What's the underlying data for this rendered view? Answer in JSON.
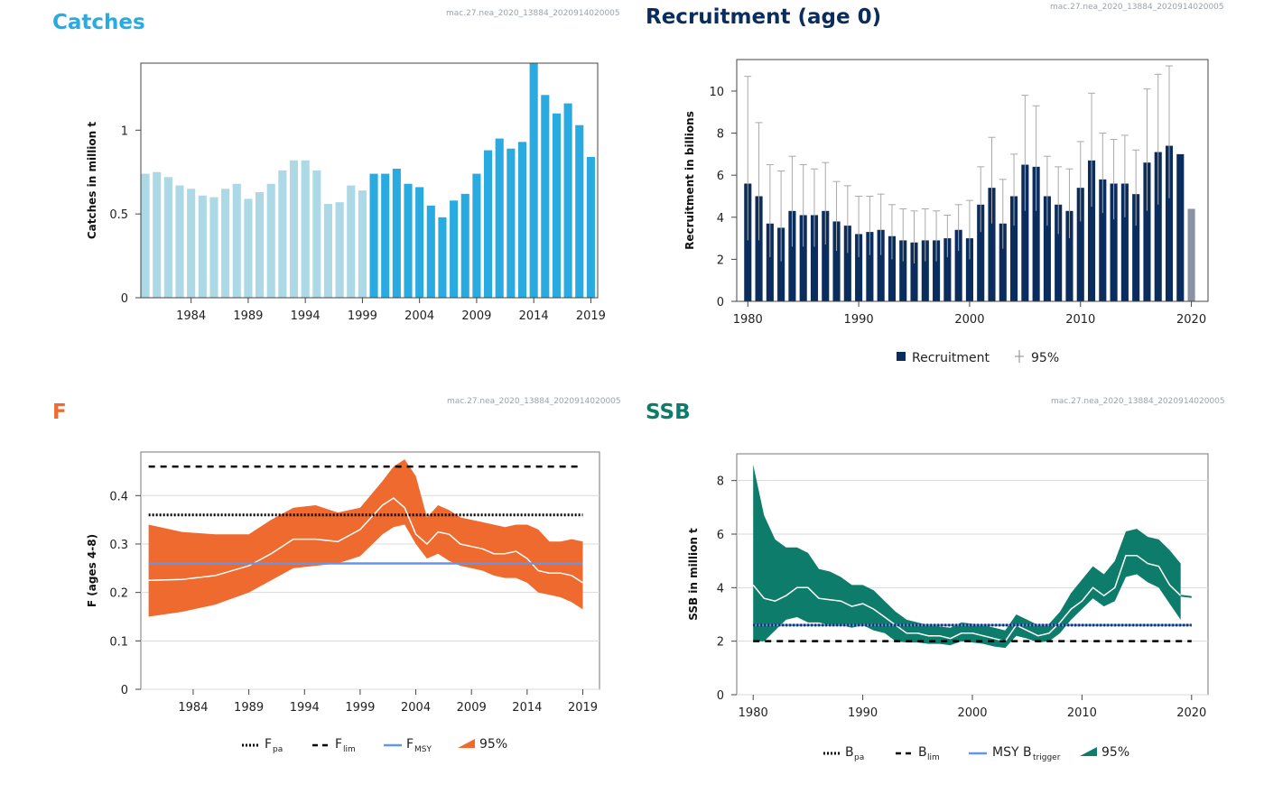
{
  "panels": {
    "catches": {
      "title": "Catches",
      "stamp": "mac.27.nea_2020_13884_2020914020005",
      "color": "#29abe2"
    },
    "recruitment": {
      "title": "Recruitment (age 0)",
      "stamp": "mac.27.nea_2020_13884_2020914020005",
      "color": "#0b2d5e"
    },
    "f": {
      "title": "F",
      "stamp": "mac.27.nea_2020_13884_2020914020005",
      "color": "#ee6a2e"
    },
    "ssb": {
      "title": "SSB",
      "stamp": "mac.27.nea_2020_13884_2020914020005",
      "color": "#0e7c6b"
    }
  },
  "chart_data": [
    {
      "id": "catches",
      "type": "bar",
      "title": "Catches",
      "ylabel": "Catches in million t",
      "xlabel": "",
      "ylim": [
        0,
        1.4
      ],
      "xlim": [
        1979.6,
        2019.6
      ],
      "xticks": [
        "1984",
        "1989",
        "1994",
        "1999",
        "2004",
        "2009",
        "2014",
        "2019"
      ],
      "yticks": [
        "0",
        "0.5",
        "1"
      ],
      "colors": {
        "historic": "#add8e6",
        "recent": "#29abe2"
      },
      "x": [
        1980,
        1981,
        1982,
        1983,
        1984,
        1985,
        1986,
        1987,
        1988,
        1989,
        1990,
        1991,
        1992,
        1993,
        1994,
        1995,
        1996,
        1997,
        1998,
        1999,
        2000,
        2001,
        2002,
        2003,
        2004,
        2005,
        2006,
        2007,
        2008,
        2009,
        2010,
        2011,
        2012,
        2013,
        2014,
        2015,
        2016,
        2017,
        2018,
        2019
      ],
      "values": [
        0.74,
        0.75,
        0.72,
        0.67,
        0.65,
        0.61,
        0.6,
        0.65,
        0.68,
        0.59,
        0.63,
        0.68,
        0.76,
        0.82,
        0.82,
        0.76,
        0.56,
        0.57,
        0.67,
        0.64,
        0.74,
        0.74,
        0.77,
        0.68,
        0.66,
        0.55,
        0.48,
        0.58,
        0.62,
        0.74,
        0.88,
        0.95,
        0.89,
        0.93,
        1.4,
        1.21,
        1.1,
        1.16,
        1.03,
        0.84
      ]
    },
    {
      "id": "recruitment",
      "type": "bar",
      "title": "Recruitment (age 0)",
      "ylabel": "Recruitment in billions",
      "xlabel": "",
      "ylim": [
        0,
        11.5
      ],
      "xlim": [
        1979,
        2021.5
      ],
      "xticks": [
        "1980",
        "1990",
        "2000",
        "2010",
        "2020"
      ],
      "yticks": [
        "0",
        "2",
        "4",
        "6",
        "8",
        "10"
      ],
      "colors": {
        "bar": "#0b2d5e",
        "last": "#8a93a3",
        "ci": "#a9a9a9"
      },
      "legend": {
        "bar": "Recruitment",
        "ci": "95%"
      },
      "x": [
        1980,
        1981,
        1982,
        1983,
        1984,
        1985,
        1986,
        1987,
        1988,
        1989,
        1990,
        1991,
        1992,
        1993,
        1994,
        1995,
        1996,
        1997,
        1998,
        1999,
        2000,
        2001,
        2002,
        2003,
        2004,
        2005,
        2006,
        2007,
        2008,
        2009,
        2010,
        2011,
        2012,
        2013,
        2014,
        2015,
        2016,
        2017,
        2018,
        2019,
        2020
      ],
      "values": [
        5.6,
        5.0,
        3.7,
        3.5,
        4.3,
        4.1,
        4.1,
        4.3,
        3.8,
        3.6,
        3.2,
        3.3,
        3.4,
        3.1,
        2.9,
        2.8,
        2.9,
        2.9,
        3.0,
        3.4,
        3.0,
        4.6,
        5.4,
        3.7,
        5.0,
        6.5,
        6.4,
        5.0,
        4.6,
        4.3,
        5.4,
        6.7,
        5.8,
        5.6,
        5.6,
        5.1,
        6.6,
        7.1,
        7.4,
        7.0,
        4.4
      ],
      "ci_low": [
        2.9,
        2.9,
        2.1,
        1.9,
        2.6,
        2.6,
        2.6,
        2.7,
        2.4,
        2.3,
        2.1,
        2.2,
        2.2,
        2.0,
        1.9,
        1.8,
        1.9,
        1.9,
        2.1,
        2.4,
        2.0,
        3.3,
        3.7,
        2.5,
        3.6,
        4.3,
        4.3,
        3.6,
        3.2,
        3.0,
        3.8,
        4.5,
        4.2,
        3.9,
        4.0,
        3.6,
        4.3,
        4.6,
        4.9,
        null,
        null
      ],
      "ci_high": [
        10.7,
        8.5,
        6.5,
        6.2,
        6.9,
        6.5,
        6.3,
        6.6,
        5.7,
        5.5,
        5.0,
        5.0,
        5.1,
        4.6,
        4.4,
        4.3,
        4.4,
        4.3,
        4.1,
        4.6,
        4.8,
        6.4,
        7.8,
        5.8,
        7.0,
        9.8,
        9.3,
        6.9,
        6.4,
        6.3,
        7.6,
        9.9,
        8.0,
        7.7,
        7.9,
        7.2,
        10.1,
        10.8,
        11.2,
        null,
        null
      ]
    },
    {
      "id": "f",
      "type": "area",
      "title": "F",
      "ylabel": "F (ages 4-8)",
      "xlabel": "",
      "ylim": [
        0,
        0.49
      ],
      "xlim": [
        1979.3,
        2020.5
      ],
      "xticks": [
        "1984",
        "1989",
        "1994",
        "1999",
        "2004",
        "2009",
        "2014",
        "2019"
      ],
      "yticks": [
        "0",
        "0.1",
        "0.2",
        "0.3",
        "0.4"
      ],
      "colors": {
        "band": "#ee6a2e",
        "line": "#ffffff",
        "fmsy": "#6495ed",
        "ref": "#000000"
      },
      "reference": {
        "fpa": 0.36,
        "flim": 0.46,
        "fmsy": 0.26
      },
      "legend": {
        "fpa": "F",
        "fpa_sub": "pa",
        "flim": "F",
        "flim_sub": "lim",
        "fmsy": "F",
        "fmsy_sub": "MSY",
        "ci": "95%"
      },
      "x": [
        1980,
        1983,
        1986,
        1989,
        1991,
        1993,
        1995,
        1997,
        1999,
        2001,
        2002,
        2003,
        2004,
        2005,
        2006,
        2007,
        2008,
        2009,
        2010,
        2011,
        2012,
        2013,
        2014,
        2015,
        2016,
        2017,
        2018,
        2019
      ],
      "values": [
        0.225,
        0.227,
        0.235,
        0.255,
        0.28,
        0.31,
        0.31,
        0.305,
        0.33,
        0.38,
        0.395,
        0.375,
        0.32,
        0.3,
        0.325,
        0.32,
        0.3,
        0.295,
        0.29,
        0.28,
        0.28,
        0.285,
        0.27,
        0.245,
        0.24,
        0.24,
        0.235,
        0.22
      ],
      "ci_low": [
        0.15,
        0.16,
        0.175,
        0.2,
        0.225,
        0.25,
        0.255,
        0.26,
        0.275,
        0.32,
        0.335,
        0.34,
        0.3,
        0.27,
        0.28,
        0.265,
        0.255,
        0.25,
        0.245,
        0.235,
        0.23,
        0.23,
        0.22,
        0.2,
        0.195,
        0.19,
        0.18,
        0.165
      ],
      "ci_high": [
        0.34,
        0.325,
        0.32,
        0.32,
        0.35,
        0.375,
        0.38,
        0.365,
        0.375,
        0.43,
        0.46,
        0.475,
        0.44,
        0.355,
        0.38,
        0.37,
        0.355,
        0.35,
        0.345,
        0.34,
        0.335,
        0.34,
        0.34,
        0.33,
        0.305,
        0.305,
        0.31,
        0.305
      ]
    },
    {
      "id": "ssb",
      "type": "area",
      "title": "SSB",
      "ylabel": "SSB in million t",
      "xlabel": "",
      "ylim": [
        0,
        9.0
      ],
      "xlim": [
        1978.5,
        2021.5
      ],
      "xticks": [
        "1980",
        "1990",
        "2000",
        "2010",
        "2020"
      ],
      "yticks": [
        "0",
        "2",
        "4",
        "6",
        "8"
      ],
      "colors": {
        "band": "#0e7c6b",
        "line": "#ffffff",
        "btrigger": "#6495ed",
        "ref": "#000000",
        "bpa_dots": "#0b2d5e"
      },
      "reference": {
        "bpa": 2.6,
        "blim": 2.0,
        "btrigger": 2.6
      },
      "legend": {
        "bpa": "B",
        "bpa_sub": "pa",
        "blim": "B",
        "blim_sub": "lim",
        "btrigger": "MSY B",
        "btrigger_sub": "trigger",
        "ci": "95%"
      },
      "x": [
        1980,
        1981,
        1982,
        1983,
        1984,
        1985,
        1986,
        1987,
        1988,
        1989,
        1990,
        1991,
        1992,
        1993,
        1994,
        1995,
        1996,
        1997,
        1998,
        1999,
        2000,
        2001,
        2002,
        2003,
        2004,
        2005,
        2006,
        2007,
        2008,
        2009,
        2010,
        2011,
        2012,
        2013,
        2014,
        2015,
        2016,
        2017,
        2018,
        2019
      ],
      "values": [
        4.1,
        3.6,
        3.5,
        3.7,
        4.0,
        4.0,
        3.6,
        3.55,
        3.5,
        3.3,
        3.4,
        3.2,
        2.9,
        2.6,
        2.3,
        2.3,
        2.2,
        2.2,
        2.1,
        2.3,
        2.3,
        2.2,
        2.1,
        2.0,
        2.6,
        2.4,
        2.2,
        2.3,
        2.7,
        3.2,
        3.5,
        4.0,
        3.7,
        4.0,
        5.2,
        5.2,
        4.9,
        4.8,
        4.1,
        3.7
      ],
      "ci_low": [
        2.0,
        2.0,
        2.4,
        2.8,
        2.9,
        2.7,
        2.7,
        2.6,
        2.6,
        2.5,
        2.6,
        2.4,
        2.3,
        2.0,
        1.95,
        1.95,
        1.9,
        1.9,
        1.85,
        2.0,
        1.95,
        1.9,
        1.8,
        1.75,
        2.2,
        2.1,
        1.95,
        2.0,
        2.3,
        2.8,
        3.2,
        3.6,
        3.3,
        3.5,
        4.4,
        4.5,
        4.2,
        4.0,
        3.4,
        2.8
      ],
      "ci_high": [
        8.6,
        6.7,
        5.8,
        5.5,
        5.5,
        5.3,
        4.7,
        4.6,
        4.4,
        4.1,
        4.1,
        3.9,
        3.5,
        3.1,
        2.8,
        2.7,
        2.6,
        2.55,
        2.5,
        2.7,
        2.65,
        2.6,
        2.5,
        2.4,
        3.0,
        2.8,
        2.6,
        2.65,
        3.1,
        3.8,
        4.3,
        4.8,
        4.5,
        5.0,
        6.1,
        6.2,
        5.9,
        5.8,
        5.4,
        4.9
      ],
      "tail_x": [
        2019,
        2020
      ],
      "tail_values": [
        3.7,
        3.65
      ]
    }
  ]
}
